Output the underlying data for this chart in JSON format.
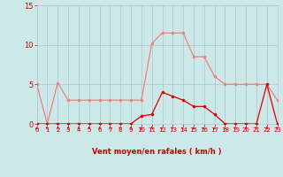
{
  "x": [
    0,
    1,
    2,
    3,
    4,
    5,
    6,
    7,
    8,
    9,
    10,
    11,
    12,
    13,
    14,
    15,
    16,
    17,
    18,
    19,
    20,
    21,
    22,
    23
  ],
  "rafales": [
    5.0,
    0.0,
    5.2,
    3.0,
    3.0,
    3.0,
    3.0,
    3.0,
    3.0,
    3.0,
    3.0,
    10.2,
    11.5,
    11.5,
    11.5,
    8.5,
    8.5,
    6.0,
    5.0,
    5.0,
    5.0,
    5.0,
    5.0,
    3.0
  ],
  "moyen": [
    0.0,
    0.0,
    0.0,
    0.0,
    0.0,
    0.0,
    0.0,
    0.0,
    0.0,
    0.0,
    1.0,
    1.2,
    4.0,
    3.5,
    3.0,
    2.2,
    2.2,
    1.2,
    0.0,
    0.0,
    0.0,
    0.0,
    5.0,
    0.0
  ],
  "color_rafales": "#f08080",
  "color_moyen": "#dd0000",
  "bg_color": "#cce8e8",
  "grid_color": "#b0cccc",
  "xlabel": "Vent moyen/en rafales ( km/h )",
  "xlabel_color": "#cc0000",
  "tick_color": "#cc0000",
  "ylim": [
    0,
    15
  ],
  "xlim": [
    0,
    23
  ],
  "yticks": [
    0,
    5,
    10,
    15
  ],
  "xticks": [
    0,
    1,
    2,
    3,
    4,
    5,
    6,
    7,
    8,
    9,
    10,
    11,
    12,
    13,
    14,
    15,
    16,
    17,
    18,
    19,
    20,
    21,
    22,
    23
  ],
  "wind_angles": [
    225,
    315,
    0,
    0,
    0,
    0,
    0,
    0,
    315,
    0,
    315,
    0,
    270,
    315,
    270,
    225,
    270,
    225,
    225,
    315,
    0,
    315,
    0,
    315
  ],
  "marker_size": 2.5
}
